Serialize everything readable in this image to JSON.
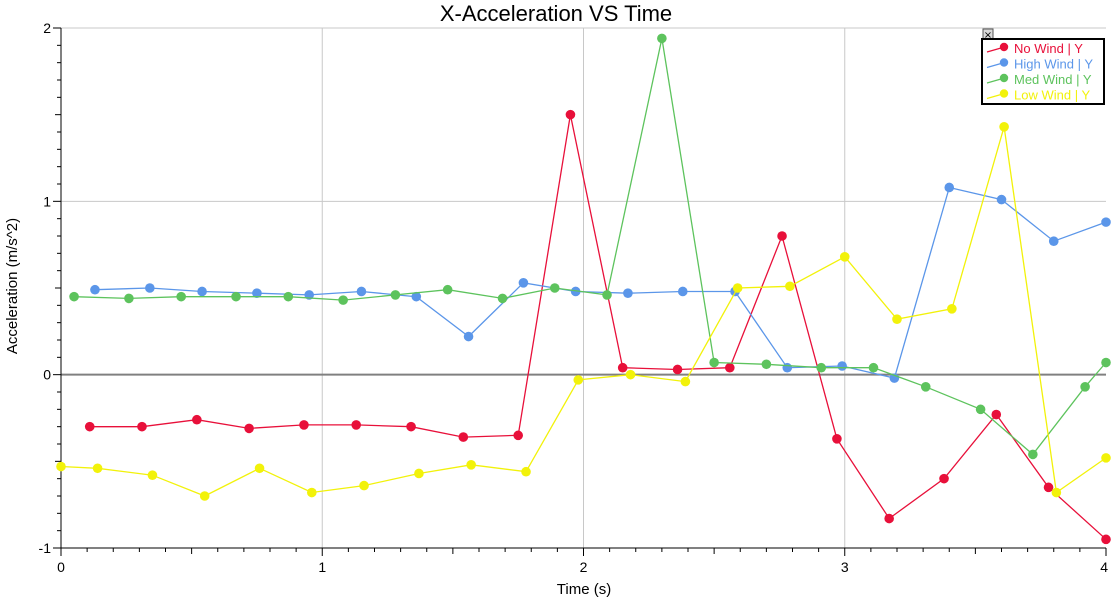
{
  "chart_data": {
    "type": "line",
    "title": "X-Acceleration VS Time",
    "xlabel": "Time (s)",
    "ylabel": "Acceleration (m/s^2)",
    "xlim": [
      0,
      4
    ],
    "ylim": [
      -1,
      2
    ],
    "x_ticks": [
      "0",
      "1",
      "2",
      "3",
      "4"
    ],
    "y_ticks": [
      "-1",
      "0",
      "1",
      "2"
    ],
    "grid": true,
    "legend_position": "top-right",
    "series": [
      {
        "name": "No Wind | Y",
        "color": "#e8103a",
        "x": [
          0.11,
          0.31,
          0.52,
          0.72,
          0.93,
          1.13,
          1.34,
          1.54,
          1.75,
          1.95,
          2.15,
          2.36,
          2.56,
          2.76,
          2.97,
          3.17,
          3.38,
          3.58,
          3.78,
          4.0
        ],
        "y": [
          -0.3,
          -0.3,
          -0.26,
          -0.31,
          -0.29,
          -0.29,
          -0.3,
          -0.36,
          -0.35,
          1.5,
          0.04,
          0.03,
          0.04,
          0.8,
          -0.37,
          -0.83,
          -0.6,
          -0.23,
          -0.65,
          -0.95
        ]
      },
      {
        "name": "High Wind | Y",
        "color": "#5b96e9",
        "x": [
          0.13,
          0.34,
          0.54,
          0.75,
          0.95,
          1.15,
          1.36,
          1.56,
          1.77,
          1.97,
          2.17,
          2.38,
          2.58,
          2.78,
          2.99,
          3.19,
          3.4,
          3.6,
          3.8,
          4.0
        ],
        "y": [
          0.49,
          0.5,
          0.48,
          0.47,
          0.46,
          0.48,
          0.45,
          0.22,
          0.53,
          0.48,
          0.47,
          0.48,
          0.48,
          0.04,
          0.05,
          -0.02,
          1.08,
          1.01,
          0.77,
          0.88
        ]
      },
      {
        "name": "Med Wind | Y",
        "color": "#5dc35d",
        "x": [
          0.05,
          0.26,
          0.46,
          0.67,
          0.87,
          1.08,
          1.28,
          1.48,
          1.69,
          1.89,
          2.09,
          2.3,
          2.5,
          2.7,
          2.91,
          3.11,
          3.31,
          3.52,
          3.72,
          3.92,
          4.0
        ],
        "y": [
          0.45,
          0.44,
          0.45,
          0.45,
          0.45,
          0.43,
          0.46,
          0.49,
          0.44,
          0.5,
          0.46,
          1.94,
          0.07,
          0.06,
          0.04,
          0.04,
          -0.07,
          -0.2,
          -0.46,
          -0.07,
          0.07
        ]
      },
      {
        "name": "Low Wind | Y",
        "color": "#f2f20a",
        "x": [
          0.0,
          0.14,
          0.35,
          0.55,
          0.76,
          0.96,
          1.16,
          1.37,
          1.57,
          1.78,
          1.98,
          2.18,
          2.39,
          2.59,
          2.79,
          3.0,
          3.2,
          3.41,
          3.61,
          3.81,
          4.0
        ],
        "y": [
          -0.53,
          -0.54,
          -0.58,
          -0.7,
          -0.54,
          -0.68,
          -0.64,
          -0.57,
          -0.52,
          -0.56,
          -0.03,
          0.0,
          -0.04,
          0.5,
          0.51,
          0.68,
          0.32,
          0.38,
          1.43,
          -0.68,
          -0.48
        ]
      }
    ]
  }
}
